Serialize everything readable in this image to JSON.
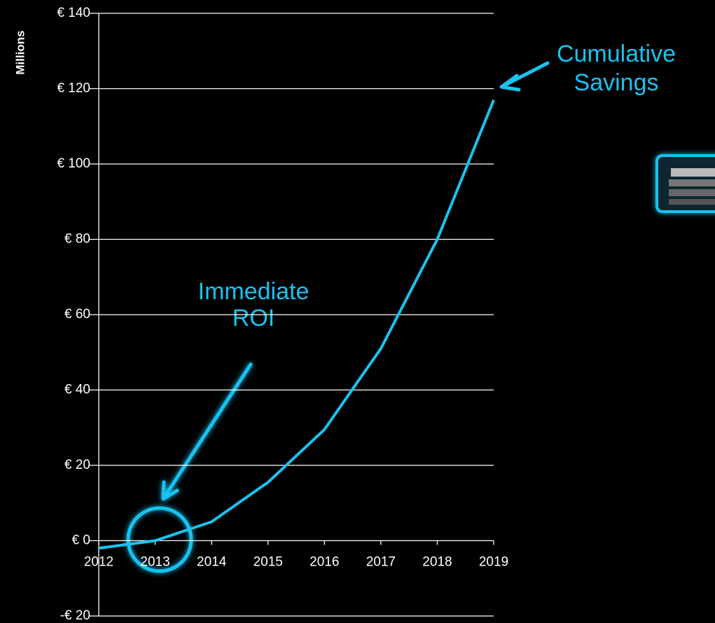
{
  "chart_data": {
    "type": "line",
    "y_axis_label": "Millions",
    "categories": [
      "2012",
      "2013",
      "2014",
      "2015",
      "2016",
      "2017",
      "2018",
      "2019"
    ],
    "series": [
      {
        "name": "Cumulative Savings",
        "color": "#19c3f0",
        "values": [
          -2,
          0,
          5,
          15.5,
          29.5,
          51,
          80,
          117
        ]
      }
    ],
    "ylim": [
      -20,
      140
    ],
    "yticks": [
      {
        "value": -20,
        "label": "-€ 20"
      },
      {
        "value": 0,
        "label": "€ 0"
      },
      {
        "value": 20,
        "label": "€ 20"
      },
      {
        "value": 40,
        "label": "€ 40"
      },
      {
        "value": 60,
        "label": "€ 60"
      },
      {
        "value": 80,
        "label": "€ 80"
      },
      {
        "value": 100,
        "label": "€ 100"
      },
      {
        "value": 120,
        "label": "€ 120"
      },
      {
        "value": 140,
        "label": "€ 140"
      }
    ],
    "grid": true,
    "annotations": [
      {
        "lines": [
          "Cumulative",
          "Savings"
        ]
      },
      {
        "lines": [
          "Immediate",
          "ROI"
        ]
      }
    ]
  }
}
